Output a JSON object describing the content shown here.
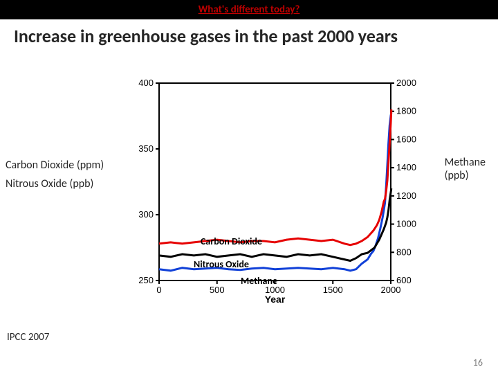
{
  "header": {
    "text": "What's different today?"
  },
  "title": "Increase in greenhouse gases in the past 2000 years",
  "left_axis_legend": {
    "line1": "Carbon Dioxide (ppm)",
    "line2": "Nitrous Oxide (ppb)"
  },
  "right_axis_legend": {
    "line1": "Methane",
    "line2": "(ppb)"
  },
  "inchart_labels": {
    "co2": "Carbon Dioxide",
    "n2o": "Nitrous Oxide",
    "ch4": "Methane"
  },
  "citation": "IPCC 2007",
  "page_number": "16",
  "chart": {
    "type": "line",
    "background_color": "#ffffff",
    "x": {
      "label": "Year",
      "lim": [
        0,
        2000
      ],
      "ticks": [
        0,
        500,
        1000,
        1500,
        2000
      ],
      "fontsize": 13
    },
    "y_left": {
      "lim": [
        250,
        400
      ],
      "ticks": [
        250,
        300,
        350,
        400
      ],
      "fontsize": 13
    },
    "y_right": {
      "lim": [
        600,
        2000
      ],
      "ticks": [
        600,
        800,
        1000,
        1200,
        1400,
        1600,
        1800,
        2000
      ],
      "fontsize": 13
    },
    "line_width": 3,
    "series": {
      "co2": {
        "color": "#e60000",
        "axis": "left",
        "data": [
          [
            0,
            278
          ],
          [
            100,
            279
          ],
          [
            200,
            278
          ],
          [
            300,
            279
          ],
          [
            400,
            280
          ],
          [
            500,
            281
          ],
          [
            600,
            280
          ],
          [
            700,
            279
          ],
          [
            800,
            280
          ],
          [
            900,
            280
          ],
          [
            1000,
            279
          ],
          [
            1100,
            281
          ],
          [
            1200,
            282
          ],
          [
            1300,
            281
          ],
          [
            1400,
            280
          ],
          [
            1500,
            281
          ],
          [
            1600,
            278
          ],
          [
            1650,
            277
          ],
          [
            1700,
            278
          ],
          [
            1750,
            280
          ],
          [
            1800,
            283
          ],
          [
            1850,
            288
          ],
          [
            1880,
            292
          ],
          [
            1900,
            296
          ],
          [
            1920,
            302
          ],
          [
            1940,
            310
          ],
          [
            1950,
            312
          ],
          [
            1960,
            318
          ],
          [
            1970,
            326
          ],
          [
            1980,
            339
          ],
          [
            1990,
            354
          ],
          [
            2000,
            370
          ],
          [
            2005,
            380
          ]
        ]
      },
      "n2o": {
        "color": "#000000",
        "axis": "left",
        "data": [
          [
            0,
            269
          ],
          [
            100,
            268
          ],
          [
            200,
            270
          ],
          [
            300,
            269
          ],
          [
            400,
            270
          ],
          [
            500,
            268
          ],
          [
            600,
            269
          ],
          [
            700,
            270
          ],
          [
            800,
            268
          ],
          [
            900,
            270
          ],
          [
            1000,
            269
          ],
          [
            1100,
            268
          ],
          [
            1200,
            270
          ],
          [
            1300,
            269
          ],
          [
            1400,
            270
          ],
          [
            1500,
            268
          ],
          [
            1600,
            266
          ],
          [
            1650,
            265
          ],
          [
            1700,
            267
          ],
          [
            1750,
            270
          ],
          [
            1800,
            271
          ],
          [
            1830,
            273
          ],
          [
            1860,
            275
          ],
          [
            1880,
            278
          ],
          [
            1900,
            281
          ],
          [
            1920,
            285
          ],
          [
            1940,
            289
          ],
          [
            1960,
            294
          ],
          [
            1970,
            298
          ],
          [
            1980,
            303
          ],
          [
            1990,
            311
          ],
          [
            2000,
            317
          ],
          [
            2005,
            320
          ]
        ]
      },
      "ch4": {
        "color": "#1040d8",
        "axis": "right",
        "data": [
          [
            0,
            680
          ],
          [
            100,
            670
          ],
          [
            200,
            690
          ],
          [
            300,
            680
          ],
          [
            400,
            685
          ],
          [
            500,
            690
          ],
          [
            600,
            680
          ],
          [
            700,
            675
          ],
          [
            800,
            685
          ],
          [
            900,
            690
          ],
          [
            1000,
            680
          ],
          [
            1100,
            685
          ],
          [
            1200,
            690
          ],
          [
            1300,
            685
          ],
          [
            1400,
            680
          ],
          [
            1500,
            690
          ],
          [
            1600,
            680
          ],
          [
            1650,
            670
          ],
          [
            1700,
            680
          ],
          [
            1750,
            720
          ],
          [
            1800,
            750
          ],
          [
            1830,
            790
          ],
          [
            1850,
            810
          ],
          [
            1870,
            850
          ],
          [
            1890,
            900
          ],
          [
            1910,
            970
          ],
          [
            1930,
            1050
          ],
          [
            1950,
            1150
          ],
          [
            1960,
            1270
          ],
          [
            1970,
            1420
          ],
          [
            1980,
            1570
          ],
          [
            1990,
            1700
          ],
          [
            2000,
            1770
          ],
          [
            2005,
            1790
          ]
        ]
      }
    }
  }
}
